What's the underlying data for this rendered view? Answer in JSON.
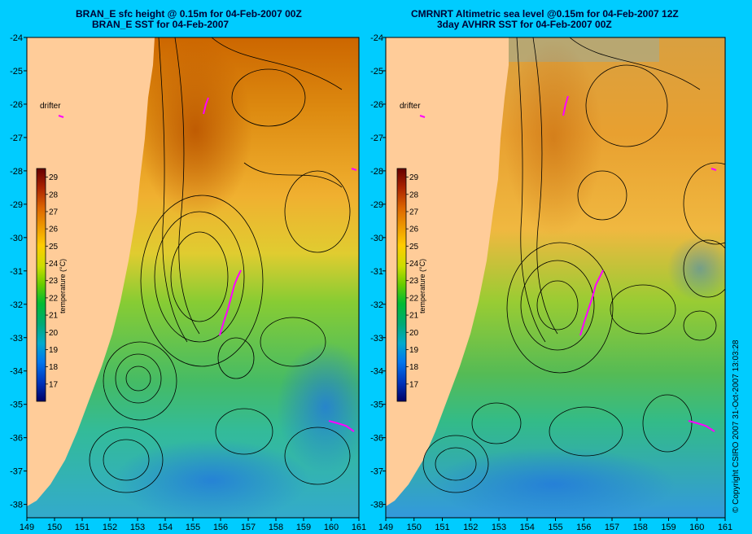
{
  "panels": [
    {
      "title_line1": "BRAN_E sfc height @ 0.15m for 04-Feb-2007 00Z",
      "title_line2": "BRAN_E SST for 04-Feb-2007",
      "drifter_label": "drifter",
      "colorbar_title": "temperature (°C)"
    },
    {
      "title_line1": "CMRNRT Altimetric sea level  @0.15m  for 04-Feb-2007 12Z",
      "title_line2": "3day AVHRR SST for 04-Feb-2007 00Z",
      "drifter_label": "drifter",
      "colorbar_title": "temperature (°C)"
    }
  ],
  "chart_data": {
    "type": "heatmap",
    "x_ticks": [
      149,
      150,
      151,
      152,
      153,
      154,
      155,
      156,
      157,
      158,
      159,
      160,
      161
    ],
    "y_ticks": [
      -24,
      -25,
      -26,
      -27,
      -28,
      -29,
      -30,
      -31,
      -32,
      -33,
      -34,
      -35,
      -36,
      -37,
      -38
    ],
    "xlim": [
      149,
      161
    ],
    "ylim": [
      -38.4,
      -24
    ],
    "colorbar_ticks": [
      29,
      28,
      27,
      26,
      25,
      24,
      23,
      22,
      21,
      20,
      19,
      18,
      17
    ],
    "colorbar_range": [
      16,
      29.5
    ]
  },
  "colors": {
    "background": "#00ccff",
    "land": "#ffcc99",
    "drifter": "#ff00ff"
  },
  "copyright": "© Copyright CSIRO 2007    31-Oct-2007 13:03:28"
}
